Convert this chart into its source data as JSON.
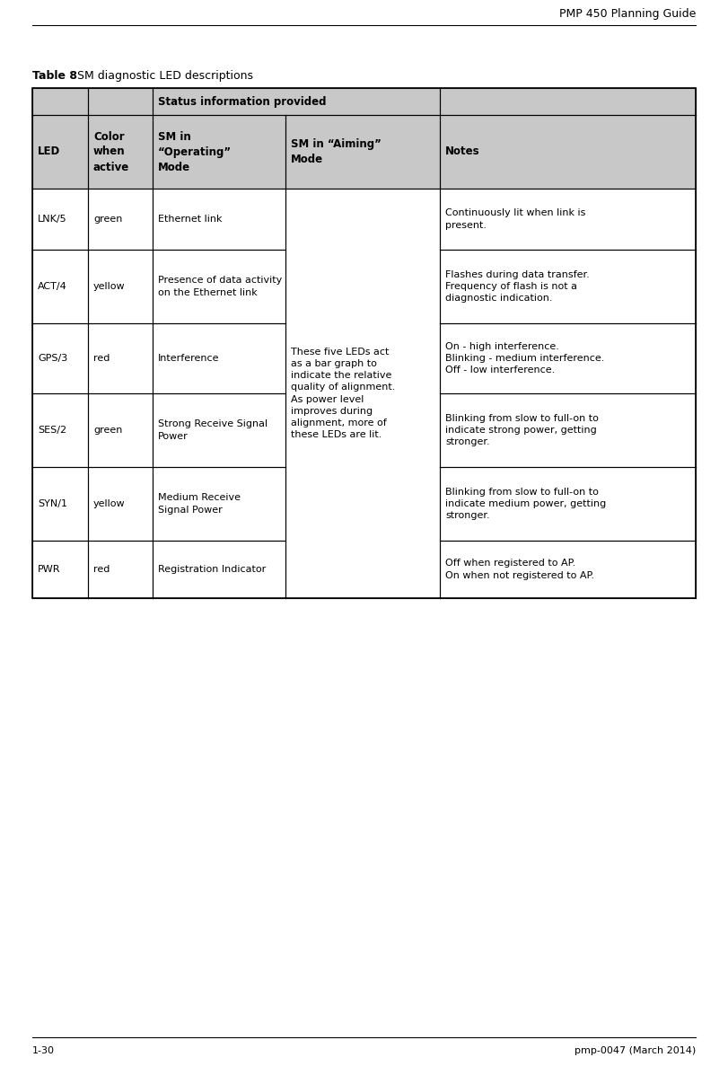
{
  "page_title": "PMP 450 Planning Guide",
  "page_footer_left": "1-30",
  "page_footer_right": "pmp-0047 (March 2014)",
  "table_title_bold": "Table 8",
  "table_title_normal": " SM diagnostic LED descriptions",
  "header_row1_text": "Status information provided",
  "header_row2": [
    "LED",
    "Color\nwhen\nactive",
    "SM in\n“Operating”\nMode",
    "SM in “Aiming”\nMode",
    "Notes"
  ],
  "rows": [
    {
      "led": "LNK/5",
      "color": "green",
      "operating": "Ethernet link",
      "notes": "Continuously lit when link is\npresent."
    },
    {
      "led": "ACT/4",
      "color": "yellow",
      "operating": "Presence of data activity\non the Ethernet link",
      "notes": "Flashes during data transfer.\nFrequency of flash is not a\ndiagnostic indication."
    },
    {
      "led": "GPS/3",
      "color": "red",
      "operating": "Interference",
      "notes": "On - high interference.\nBlinking - medium interference.\nOff - low interference."
    },
    {
      "led": "SES/2",
      "color": "green",
      "operating": "Strong Receive Signal\nPower",
      "notes": "Blinking from slow to full-on to\nindicate strong power, getting\nstronger."
    },
    {
      "led": "SYN/1",
      "color": "yellow",
      "operating": "Medium Receive\nSignal Power",
      "notes": "Blinking from slow to full-on to\nindicate medium power, getting\nstronger."
    },
    {
      "led": "PWR",
      "color": "red",
      "operating": "Registration Indicator",
      "notes": "Off when registered to AP.\nOn when not registered to AP."
    }
  ],
  "aiming_text": "These five LEDs act\nas a bar graph to\nindicate the relative\nquality of alignment.\nAs power level\nimproves during\nalignment, more of\nthese LEDs are lit.",
  "header_bg": "#c8c8c8",
  "white_bg": "#ffffff",
  "border_color": "#000000",
  "text_color": "#000000",
  "header_fontsize": 8.5,
  "cell_fontsize": 8,
  "title_fontsize": 9,
  "footer_fontsize": 8,
  "page_title_fontsize": 9
}
